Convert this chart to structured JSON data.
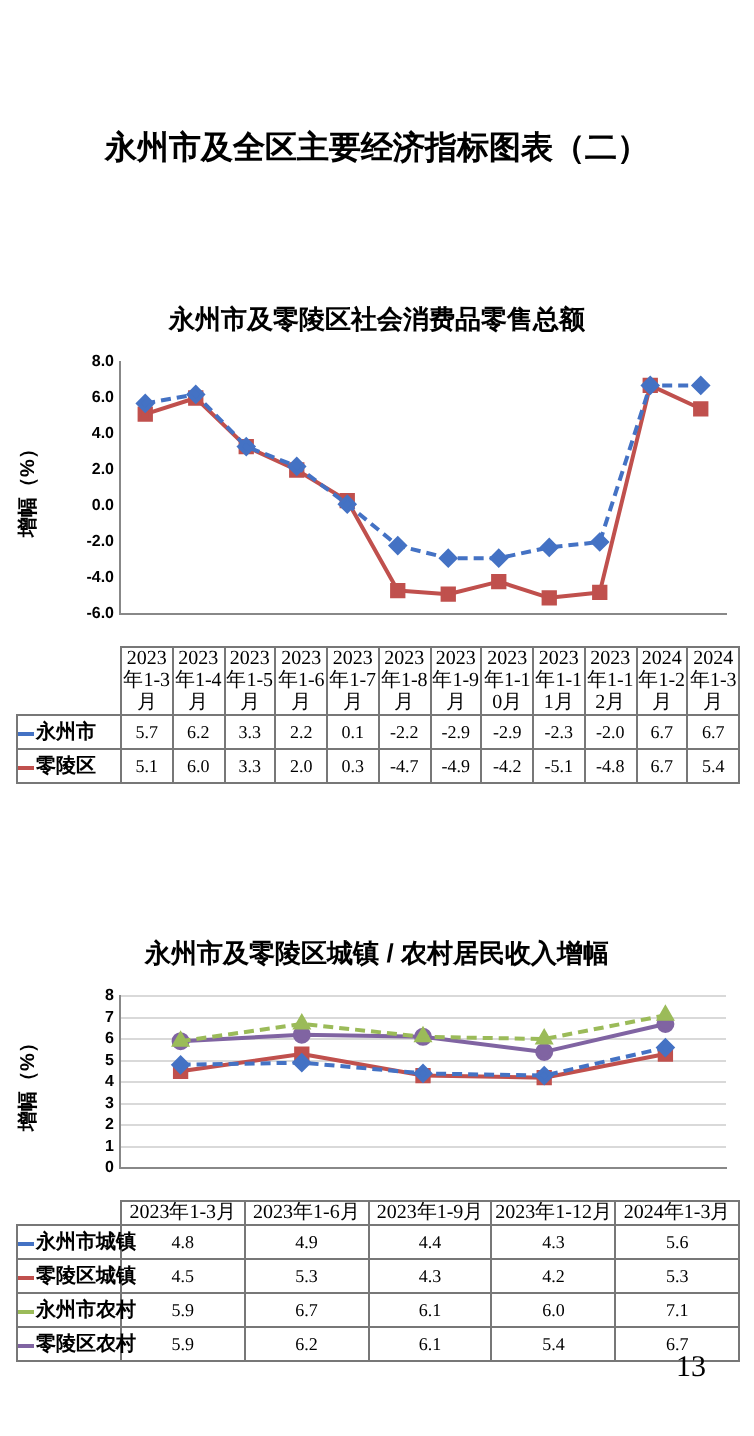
{
  "chart_data": [
    {
      "type": "line",
      "title": "永州市及零陵区社会消费品零售总额",
      "ylabel": "增幅（%）",
      "annotations": [
        "永州市及全区主要经济指标图表（二）"
      ],
      "categories": [
        "2023年1-3月",
        "2023年1-4月",
        "2023年1-5月",
        "2023年1-6月",
        "2023年1-7月",
        "2023年1-8月",
        "2023年1-9月",
        "2023年1-10月",
        "2023年1-11月",
        "2023年1-12月",
        "2024年1-2月",
        "2024年1-3月"
      ],
      "series": [
        {
          "name": "永州市",
          "color": "#4472c4",
          "marker": "diamond",
          "line_style": "dashed",
          "values": [
            5.7,
            6.2,
            3.3,
            2.2,
            0.1,
            -2.2,
            -2.9,
            -2.9,
            -2.3,
            -2.0,
            6.7,
            6.7
          ],
          "value_labels": [
            "5.7",
            "6.2",
            "3.3",
            "2.2",
            "0.1",
            "-2.2",
            "-2.9",
            "-2.9",
            "-2.3",
            "-2.0",
            "6.7",
            "6.7"
          ]
        },
        {
          "name": "零陵区",
          "color": "#c0504d",
          "marker": "square",
          "line_style": "solid",
          "values": [
            5.1,
            6.0,
            3.3,
            2.0,
            0.3,
            -4.7,
            -4.9,
            -4.2,
            -5.1,
            -4.8,
            6.7,
            5.4
          ],
          "value_labels": [
            "5.1",
            "6.0",
            "3.3",
            "2.0",
            "0.3",
            "-4.7",
            "-4.9",
            "-4.2",
            "-5.1",
            "-4.8",
            "6.7",
            "5.4"
          ]
        }
      ],
      "ylim": [
        -6,
        8
      ],
      "yticks": [
        {
          "value": -6,
          "label": "-6.0"
        },
        {
          "value": -4,
          "label": "-4.0"
        },
        {
          "value": -2,
          "label": "-2.0"
        },
        {
          "value": 0,
          "label": "0.0"
        },
        {
          "value": 2,
          "label": "2.0"
        },
        {
          "value": 4,
          "label": "4.0"
        },
        {
          "value": 6,
          "label": "6.0"
        },
        {
          "value": 8,
          "label": "8.0"
        }
      ],
      "grid": false,
      "legend": "bottom left",
      "tick_labels": "y"
    },
    {
      "type": "line",
      "title": "永州市及零陵区城镇 / 农村居民收入增幅",
      "ylabel": "增幅（%）",
      "annotations": [
        "13"
      ],
      "categories": [
        "2023年1-3月",
        "2023年1-6月",
        "2023年1-9月",
        "2023年1-12月",
        "2024年1-3月"
      ],
      "series": [
        {
          "name": "永州市城镇",
          "color": "#4472c4",
          "marker": "diamond",
          "line_style": "dashed",
          "values": [
            4.8,
            4.9,
            4.4,
            4.3,
            5.6
          ],
          "value_labels": [
            "4.8",
            "4.9",
            "4.4",
            "4.3",
            "5.6"
          ]
        },
        {
          "name": "零陵区城镇",
          "color": "#c0504d",
          "marker": "square",
          "line_style": "solid",
          "values": [
            4.5,
            5.3,
            4.3,
            4.2,
            5.3
          ],
          "value_labels": [
            "4.5",
            "5.3",
            "4.3",
            "4.2",
            "5.3"
          ]
        },
        {
          "name": "永州市农村",
          "color": "#9bbb59",
          "marker": "triangle",
          "line_style": "dashed",
          "values": [
            5.9,
            6.7,
            6.1,
            6.0,
            7.1
          ],
          "value_labels": [
            "5.9",
            "6.7",
            "6.1",
            "6.0",
            "7.1"
          ]
        },
        {
          "name": "零陵区农村",
          "color": "#8064a2",
          "marker": "circle",
          "line_style": "solid",
          "values": [
            5.9,
            6.2,
            6.1,
            5.4,
            6.7
          ],
          "value_labels": [
            "5.9",
            "6.2",
            "6.1",
            "5.4",
            "6.7"
          ]
        }
      ],
      "ylim": [
        0,
        8
      ],
      "yticks": [
        0,
        1,
        2,
        3,
        4,
        5,
        6,
        7,
        8
      ],
      "grid": "y",
      "legend": "bottom left",
      "tick_labels": "y"
    }
  ]
}
